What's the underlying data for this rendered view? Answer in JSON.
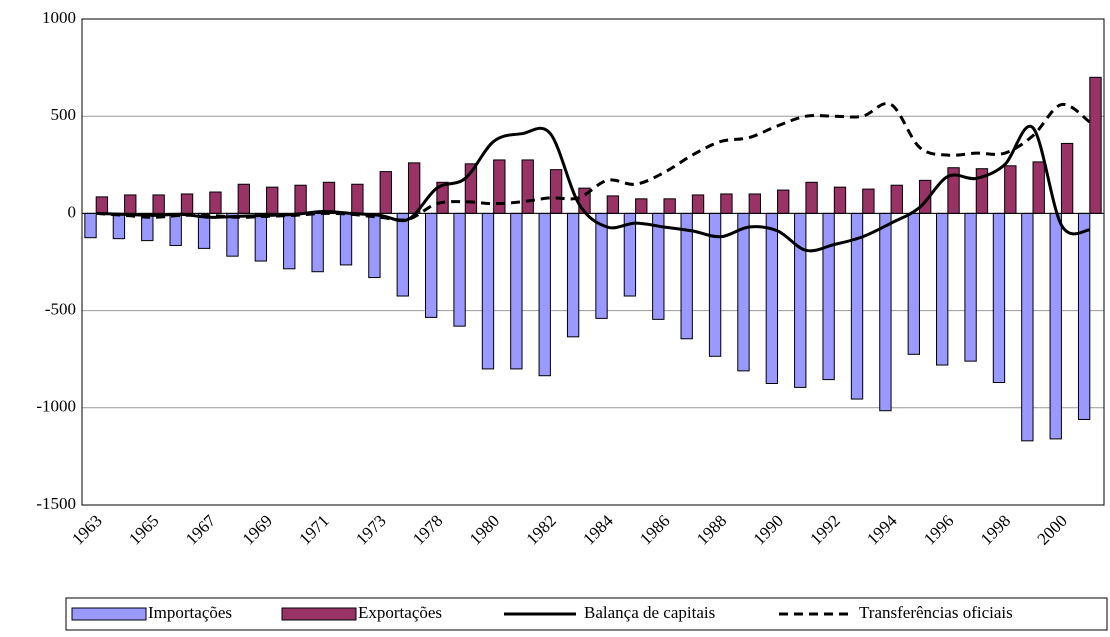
{
  "chart_data": {
    "type": "bar-line",
    "categories": [
      "1963",
      null,
      "1965",
      null,
      "1967",
      null,
      "1969",
      null,
      "1971",
      null,
      "1973",
      null,
      "1978",
      null,
      "1980",
      null,
      "1982",
      null,
      "1984",
      null,
      "1986",
      null,
      "1988",
      null,
      "1990",
      null,
      "1992",
      null,
      "1994",
      null,
      "1996",
      null,
      "1998",
      null,
      "2000",
      null
    ],
    "series": [
      {
        "name": "Importações",
        "kind": "bar",
        "color": "#9999ff",
        "values": [
          -125,
          -130,
          -140,
          -165,
          -180,
          -220,
          -245,
          -285,
          -300,
          -265,
          -330,
          -425,
          -535,
          -580,
          -800,
          -800,
          -835,
          -635,
          -540,
          -425,
          -545,
          -645,
          -735,
          -810,
          -875,
          -895,
          -855,
          -955,
          -1015,
          -725,
          -780,
          -760,
          -870,
          -1170,
          -1160,
          -1060
        ]
      },
      {
        "name": "Exportações",
        "kind": "bar",
        "color": "#993366",
        "values": [
          85,
          95,
          95,
          100,
          110,
          150,
          135,
          145,
          160,
          150,
          215,
          260,
          160,
          255,
          275,
          275,
          225,
          130,
          90,
          75,
          75,
          95,
          100,
          100,
          120,
          160,
          135,
          125,
          145,
          170,
          235,
          230,
          245,
          265,
          360,
          700
        ]
      },
      {
        "name": "Balança de capitais",
        "kind": "line",
        "color": "#000000",
        "values": [
          0,
          -5,
          -10,
          -5,
          -20,
          -15,
          -10,
          -5,
          10,
          0,
          -10,
          -30,
          130,
          180,
          370,
          410,
          410,
          50,
          -70,
          -50,
          -70,
          -90,
          -120,
          -70,
          -90,
          -190,
          -160,
          -120,
          -50,
          30,
          190,
          180,
          250,
          440,
          -60,
          -85
        ]
      },
      {
        "name": "Transferências oficiais",
        "kind": "dashed",
        "color": "#000000",
        "values": [
          0,
          -10,
          -20,
          -10,
          -10,
          -20,
          -15,
          -10,
          0,
          -5,
          -20,
          -30,
          50,
          60,
          50,
          60,
          80,
          80,
          170,
          150,
          210,
          300,
          370,
          390,
          450,
          500,
          500,
          500,
          560,
          340,
          300,
          310,
          310,
          400,
          560,
          470
        ]
      }
    ],
    "ylim": [
      -1500,
      1000
    ],
    "yticks": [
      -1500,
      -1000,
      -500,
      0,
      500,
      1000
    ],
    "grid": true
  }
}
